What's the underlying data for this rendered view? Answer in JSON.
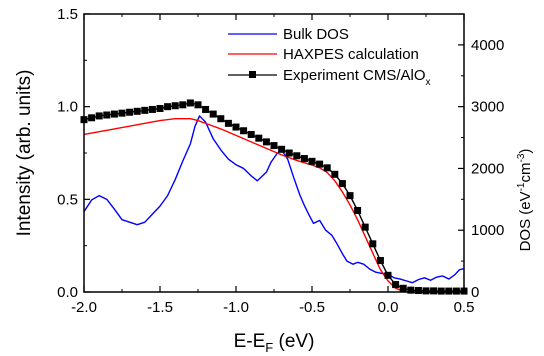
{
  "chart_data": {
    "type": "line",
    "xlabel_main": "E-E",
    "xlabel_sub": "F",
    "xlabel_unit": " (eV)",
    "ylabel": "Intensity (arb. units)",
    "y2label": "DOS (eV-1cm-3)",
    "y2label_parts": [
      "DOS (eV",
      "-1",
      "cm",
      "-3",
      ")"
    ],
    "xlim": [
      -2.0,
      0.5
    ],
    "ylim": [
      0.0,
      1.5
    ],
    "y2lim": [
      0,
      4500
    ],
    "x_ticks": [
      "-2.0",
      "-1.5",
      "-1.0",
      "-0.5",
      "0.0",
      "0.5"
    ],
    "y_ticks": [
      "0.0",
      "0.5",
      "1.0",
      "1.5"
    ],
    "y2_ticks": [
      "0",
      "1000",
      "2000",
      "3000",
      "4000"
    ],
    "legend_position": "top-right",
    "series": [
      {
        "name": "Bulk DOS",
        "axis": "right",
        "color": "#0000ff",
        "points": [
          [
            -2.0,
            1300
          ],
          [
            -1.95,
            1490
          ],
          [
            -1.9,
            1560
          ],
          [
            -1.85,
            1500
          ],
          [
            -1.8,
            1340
          ],
          [
            -1.75,
            1170
          ],
          [
            -1.7,
            1130
          ],
          [
            -1.65,
            1090
          ],
          [
            -1.6,
            1130
          ],
          [
            -1.55,
            1260
          ],
          [
            -1.5,
            1390
          ],
          [
            -1.45,
            1560
          ],
          [
            -1.4,
            1820
          ],
          [
            -1.35,
            2120
          ],
          [
            -1.3,
            2400
          ],
          [
            -1.27,
            2680
          ],
          [
            -1.24,
            2850
          ],
          [
            -1.2,
            2750
          ],
          [
            -1.15,
            2480
          ],
          [
            -1.1,
            2300
          ],
          [
            -1.05,
            2150
          ],
          [
            -1.0,
            2060
          ],
          [
            -0.95,
            2000
          ],
          [
            -0.9,
            1880
          ],
          [
            -0.86,
            1800
          ],
          [
            -0.83,
            1870
          ],
          [
            -0.8,
            1940
          ],
          [
            -0.77,
            2100
          ],
          [
            -0.73,
            2240
          ],
          [
            -0.7,
            2300
          ],
          [
            -0.66,
            2150
          ],
          [
            -0.62,
            1850
          ],
          [
            -0.58,
            1570
          ],
          [
            -0.55,
            1400
          ],
          [
            -0.52,
            1250
          ],
          [
            -0.49,
            1110
          ],
          [
            -0.45,
            1160
          ],
          [
            -0.41,
            1000
          ],
          [
            -0.37,
            920
          ],
          [
            -0.34,
            800
          ],
          [
            -0.3,
            620
          ],
          [
            -0.27,
            500
          ],
          [
            -0.23,
            450
          ],
          [
            -0.2,
            480
          ],
          [
            -0.16,
            450
          ],
          [
            -0.12,
            370
          ],
          [
            -0.08,
            320
          ],
          [
            -0.04,
            300
          ],
          [
            0.0,
            290
          ],
          [
            0.04,
            230
          ],
          [
            0.08,
            210
          ],
          [
            0.12,
            180
          ],
          [
            0.16,
            150
          ],
          [
            0.2,
            200
          ],
          [
            0.24,
            230
          ],
          [
            0.28,
            190
          ],
          [
            0.32,
            240
          ],
          [
            0.36,
            260
          ],
          [
            0.4,
            210
          ],
          [
            0.44,
            280
          ],
          [
            0.47,
            360
          ],
          [
            0.5,
            380
          ]
        ]
      },
      {
        "name": "HAXPES calculation",
        "axis": "left",
        "color": "#ff0000",
        "points": [
          [
            -2.0,
            0.85
          ],
          [
            -1.9,
            0.865
          ],
          [
            -1.8,
            0.88
          ],
          [
            -1.7,
            0.895
          ],
          [
            -1.6,
            0.91
          ],
          [
            -1.5,
            0.925
          ],
          [
            -1.4,
            0.935
          ],
          [
            -1.3,
            0.935
          ],
          [
            -1.25,
            0.925
          ],
          [
            -1.2,
            0.91
          ],
          [
            -1.1,
            0.88
          ],
          [
            -1.0,
            0.845
          ],
          [
            -0.9,
            0.81
          ],
          [
            -0.8,
            0.775
          ],
          [
            -0.7,
            0.74
          ],
          [
            -0.6,
            0.71
          ],
          [
            -0.5,
            0.685
          ],
          [
            -0.45,
            0.67
          ],
          [
            -0.4,
            0.645
          ],
          [
            -0.35,
            0.6
          ],
          [
            -0.3,
            0.54
          ],
          [
            -0.25,
            0.47
          ],
          [
            -0.2,
            0.39
          ],
          [
            -0.15,
            0.3
          ],
          [
            -0.1,
            0.21
          ],
          [
            -0.05,
            0.12
          ],
          [
            0.0,
            0.06
          ],
          [
            0.05,
            0.02
          ],
          [
            0.1,
            0.005
          ],
          [
            0.15,
            0.0
          ],
          [
            0.2,
            0.0
          ],
          [
            0.3,
            0.0
          ],
          [
            0.4,
            0.0
          ],
          [
            0.5,
            0.0
          ]
        ]
      },
      {
        "name": "Experiment CMS/AlOx",
        "name_parts": [
          "Experiment CMS/AlO",
          "x"
        ],
        "axis": "left",
        "color": "#000000",
        "marker": "square",
        "points": [
          [
            -2.0,
            0.93
          ],
          [
            -1.95,
            0.94
          ],
          [
            -1.9,
            0.95
          ],
          [
            -1.85,
            0.955
          ],
          [
            -1.8,
            0.96
          ],
          [
            -1.75,
            0.965
          ],
          [
            -1.7,
            0.97
          ],
          [
            -1.65,
            0.975
          ],
          [
            -1.6,
            0.98
          ],
          [
            -1.55,
            0.985
          ],
          [
            -1.5,
            0.99
          ],
          [
            -1.45,
            1.0
          ],
          [
            -1.4,
            1.005
          ],
          [
            -1.35,
            1.01
          ],
          [
            -1.3,
            1.02
          ],
          [
            -1.25,
            1.01
          ],
          [
            -1.2,
            0.985
          ],
          [
            -1.15,
            0.96
          ],
          [
            -1.1,
            0.935
          ],
          [
            -1.05,
            0.91
          ],
          [
            -1.0,
            0.89
          ],
          [
            -0.95,
            0.87
          ],
          [
            -0.9,
            0.85
          ],
          [
            -0.85,
            0.83
          ],
          [
            -0.8,
            0.81
          ],
          [
            -0.75,
            0.79
          ],
          [
            -0.7,
            0.77
          ],
          [
            -0.65,
            0.75
          ],
          [
            -0.6,
            0.735
          ],
          [
            -0.55,
            0.72
          ],
          [
            -0.5,
            0.705
          ],
          [
            -0.45,
            0.69
          ],
          [
            -0.4,
            0.67
          ],
          [
            -0.35,
            0.635
          ],
          [
            -0.3,
            0.585
          ],
          [
            -0.25,
            0.52
          ],
          [
            -0.2,
            0.44
          ],
          [
            -0.15,
            0.35
          ],
          [
            -0.1,
            0.26
          ],
          [
            -0.05,
            0.17
          ],
          [
            0.0,
            0.09
          ],
          [
            0.05,
            0.04
          ],
          [
            0.1,
            0.02
          ],
          [
            0.15,
            0.01
          ],
          [
            0.2,
            0.008
          ],
          [
            0.25,
            0.006
          ],
          [
            0.3,
            0.006
          ],
          [
            0.35,
            0.005
          ],
          [
            0.4,
            0.005
          ],
          [
            0.45,
            0.005
          ],
          [
            0.5,
            0.005
          ]
        ]
      }
    ]
  }
}
